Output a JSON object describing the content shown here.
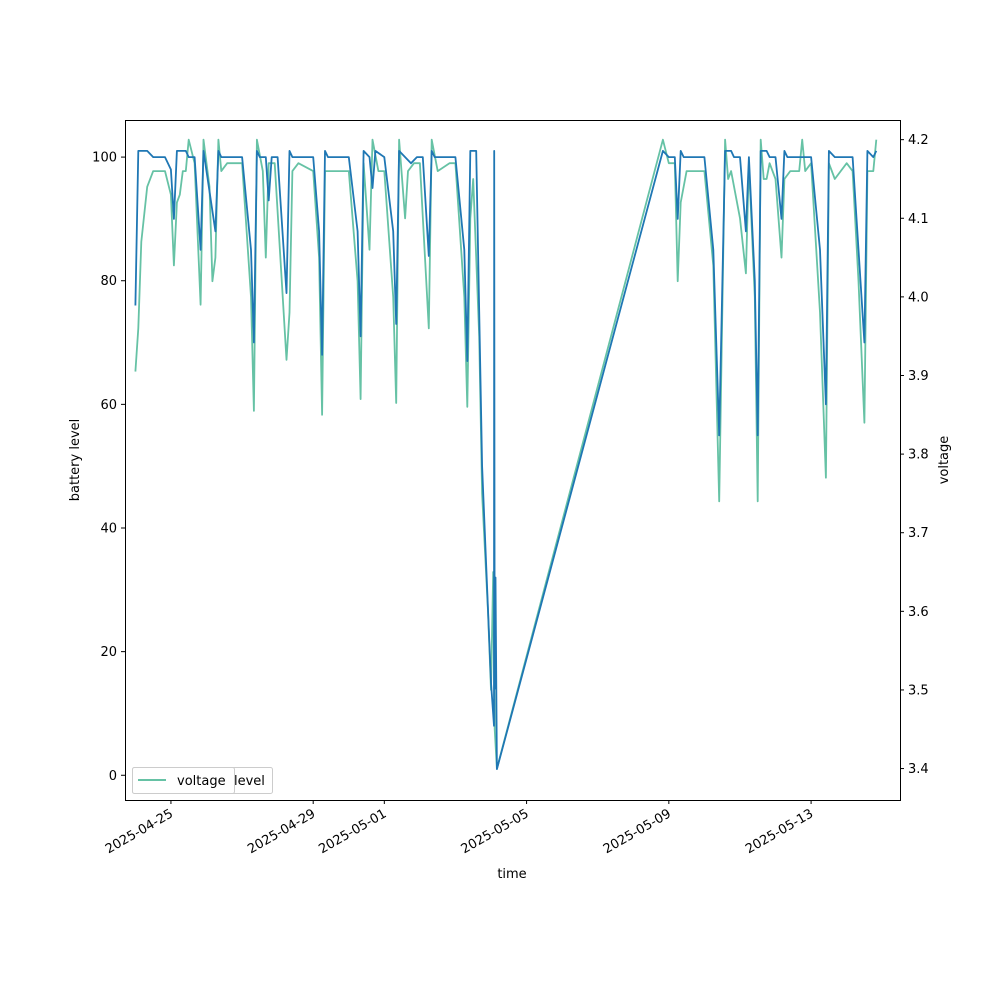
{
  "chart_data": {
    "type": "line",
    "xlabel": "time",
    "ylabel_left": "battery level",
    "ylabel_right": "voltage",
    "x_range": [
      "2025-04-23T17:00",
      "2025-05-15T12:00"
    ],
    "ylim_left": [
      -4,
      106
    ],
    "ylim_right": [
      3.36,
      4.225
    ],
    "x_ticks": [
      "2025-04-25",
      "2025-04-29",
      "2025-05-01",
      "2025-05-05",
      "2025-05-09",
      "2025-05-13"
    ],
    "y_ticks_left": [
      "0",
      "20",
      "40",
      "60",
      "80",
      "100"
    ],
    "y_ticks_right": [
      "3.4",
      "3.5",
      "3.6",
      "3.7",
      "3.8",
      "3.9",
      "4.0",
      "4.1",
      "4.2"
    ],
    "legend": {
      "placement": "lower-left",
      "entries": [
        "voltage",
        "level"
      ]
    },
    "colors": {
      "level": "#1f77b4",
      "voltage": "#66c2a5"
    },
    "grid": false,
    "series": [
      {
        "name": "level",
        "axis": "left",
        "color": "#1f77b4",
        "points": [
          [
            "2025-04-24T00:00",
            76
          ],
          [
            "2025-04-24T02:00",
            101
          ],
          [
            "2025-04-24T08:00",
            101
          ],
          [
            "2025-04-24T12:00",
            100
          ],
          [
            "2025-04-24T20:00",
            100
          ],
          [
            "2025-04-25T00:00",
            98
          ],
          [
            "2025-04-25T02:00",
            90
          ],
          [
            "2025-04-25T04:00",
            101
          ],
          [
            "2025-04-25T10:00",
            101
          ],
          [
            "2025-04-25T12:00",
            100
          ],
          [
            "2025-04-25T16:00",
            100
          ],
          [
            "2025-04-25T20:00",
            85
          ],
          [
            "2025-04-25T22:00",
            101
          ],
          [
            "2025-04-26T06:00",
            88
          ],
          [
            "2025-04-26T08:00",
            101
          ],
          [
            "2025-04-26T10:00",
            100
          ],
          [
            "2025-04-27T00:00",
            100
          ],
          [
            "2025-04-27T06:00",
            85
          ],
          [
            "2025-04-27T08:00",
            70
          ],
          [
            "2025-04-27T10:00",
            101
          ],
          [
            "2025-04-27T12:00",
            100
          ],
          [
            "2025-04-27T16:00",
            100
          ],
          [
            "2025-04-27T18:00",
            93
          ],
          [
            "2025-04-27T20:00",
            100
          ],
          [
            "2025-04-28T00:00",
            100
          ],
          [
            "2025-04-28T06:00",
            78
          ],
          [
            "2025-04-28T08:00",
            101
          ],
          [
            "2025-04-28T10:00",
            100
          ],
          [
            "2025-04-29T00:00",
            100
          ],
          [
            "2025-04-29T04:00",
            88
          ],
          [
            "2025-04-29T06:00",
            68
          ],
          [
            "2025-04-29T08:00",
            101
          ],
          [
            "2025-04-29T10:00",
            100
          ],
          [
            "2025-04-30T00:00",
            100
          ],
          [
            "2025-04-30T06:00",
            88
          ],
          [
            "2025-04-30T08:00",
            71
          ],
          [
            "2025-04-30T10:00",
            101
          ],
          [
            "2025-04-30T14:00",
            100
          ],
          [
            "2025-04-30T16:00",
            95
          ],
          [
            "2025-04-30T18:00",
            101
          ],
          [
            "2025-05-01T00:00",
            100
          ],
          [
            "2025-05-01T06:00",
            88
          ],
          [
            "2025-05-01T08:00",
            73
          ],
          [
            "2025-05-01T10:00",
            101
          ],
          [
            "2025-05-01T14:00",
            100
          ],
          [
            "2025-05-01T18:00",
            99
          ],
          [
            "2025-05-01T22:00",
            100
          ],
          [
            "2025-05-02T02:00",
            100
          ],
          [
            "2025-05-02T06:00",
            84
          ],
          [
            "2025-05-02T08:00",
            101
          ],
          [
            "2025-05-02T10:00",
            100
          ],
          [
            "2025-05-03T00:00",
            100
          ],
          [
            "2025-05-03T06:00",
            85
          ],
          [
            "2025-05-03T08:00",
            67
          ],
          [
            "2025-05-03T10:00",
            101
          ],
          [
            "2025-05-03T14:00",
            101
          ],
          [
            "2025-05-03T16:00",
            75
          ],
          [
            "2025-05-03T18:00",
            50
          ],
          [
            "2025-05-04T00:00",
            15
          ],
          [
            "2025-05-04T02:00",
            8
          ],
          [
            "2025-05-04T02:10",
            101
          ],
          [
            "2025-05-04T02:20",
            40
          ],
          [
            "2025-05-04T02:30",
            14
          ],
          [
            "2025-05-04T03:00",
            32
          ],
          [
            "2025-05-04T04:00",
            1
          ],
          [
            "2025-05-08T20:00",
            101
          ],
          [
            "2025-05-09T00:00",
            100
          ],
          [
            "2025-05-09T04:00",
            100
          ],
          [
            "2025-05-09T06:00",
            90
          ],
          [
            "2025-05-09T08:00",
            101
          ],
          [
            "2025-05-09T10:00",
            100
          ],
          [
            "2025-05-10T00:00",
            100
          ],
          [
            "2025-05-10T06:00",
            85
          ],
          [
            "2025-05-10T10:00",
            55
          ],
          [
            "2025-05-10T14:00",
            101
          ],
          [
            "2025-05-10T18:00",
            101
          ],
          [
            "2025-05-10T20:00",
            100
          ],
          [
            "2025-05-11T00:00",
            100
          ],
          [
            "2025-05-11T04:00",
            88
          ],
          [
            "2025-05-11T06:00",
            100
          ],
          [
            "2025-05-11T10:00",
            80
          ],
          [
            "2025-05-11T12:00",
            55
          ],
          [
            "2025-05-11T14:00",
            101
          ],
          [
            "2025-05-11T18:00",
            101
          ],
          [
            "2025-05-11T20:00",
            100
          ],
          [
            "2025-05-12T00:00",
            100
          ],
          [
            "2025-05-12T04:00",
            90
          ],
          [
            "2025-05-12T06:00",
            101
          ],
          [
            "2025-05-12T08:00",
            100
          ],
          [
            "2025-05-13T00:00",
            100
          ],
          [
            "2025-05-13T06:00",
            85
          ],
          [
            "2025-05-13T10:00",
            60
          ],
          [
            "2025-05-13T12:00",
            101
          ],
          [
            "2025-05-13T16:00",
            100
          ],
          [
            "2025-05-14T04:00",
            100
          ],
          [
            "2025-05-14T08:00",
            85
          ],
          [
            "2025-05-14T12:00",
            70
          ],
          [
            "2025-05-14T14:00",
            101
          ],
          [
            "2025-05-14T18:00",
            100
          ],
          [
            "2025-05-14T20:00",
            101
          ]
        ]
      },
      {
        "name": "voltage",
        "axis": "right",
        "color": "#66c2a5",
        "points": [
          [
            "2025-04-24T00:00",
            3.905
          ],
          [
            "2025-04-24T02:00",
            3.96
          ],
          [
            "2025-04-24T04:00",
            4.07
          ],
          [
            "2025-04-24T08:00",
            4.14
          ],
          [
            "2025-04-24T12:00",
            4.16
          ],
          [
            "2025-04-24T20:00",
            4.16
          ],
          [
            "2025-04-25T00:00",
            4.13
          ],
          [
            "2025-04-25T02:00",
            4.04
          ],
          [
            "2025-04-25T04:00",
            4.12
          ],
          [
            "2025-04-25T06:00",
            4.13
          ],
          [
            "2025-04-25T08:00",
            4.16
          ],
          [
            "2025-04-25T10:00",
            4.16
          ],
          [
            "2025-04-25T12:00",
            4.2
          ],
          [
            "2025-04-25T16:00",
            4.17
          ],
          [
            "2025-04-25T20:00",
            3.99
          ],
          [
            "2025-04-25T22:00",
            4.2
          ],
          [
            "2025-04-26T02:00",
            4.14
          ],
          [
            "2025-04-26T04:00",
            4.02
          ],
          [
            "2025-04-26T06:00",
            4.05
          ],
          [
            "2025-04-26T08:00",
            4.2
          ],
          [
            "2025-04-26T10:00",
            4.16
          ],
          [
            "2025-04-26T14:00",
            4.17
          ],
          [
            "2025-04-27T00:00",
            4.17
          ],
          [
            "2025-04-27T06:00",
            4.0
          ],
          [
            "2025-04-27T08:00",
            3.855
          ],
          [
            "2025-04-27T10:00",
            4.2
          ],
          [
            "2025-04-27T14:00",
            4.16
          ],
          [
            "2025-04-27T16:00",
            4.05
          ],
          [
            "2025-04-27T18:00",
            4.17
          ],
          [
            "2025-04-27T22:00",
            4.17
          ],
          [
            "2025-04-28T06:00",
            3.92
          ],
          [
            "2025-04-28T08:00",
            3.98
          ],
          [
            "2025-04-28T10:00",
            4.16
          ],
          [
            "2025-04-28T14:00",
            4.17
          ],
          [
            "2025-04-29T00:00",
            4.16
          ],
          [
            "2025-04-29T04:00",
            4.05
          ],
          [
            "2025-04-29T06:00",
            3.85
          ],
          [
            "2025-04-29T08:00",
            4.16
          ],
          [
            "2025-04-29T12:00",
            4.16
          ],
          [
            "2025-04-30T00:00",
            4.16
          ],
          [
            "2025-04-30T06:00",
            4.02
          ],
          [
            "2025-04-30T08:00",
            3.87
          ],
          [
            "2025-04-30T10:00",
            4.17
          ],
          [
            "2025-04-30T14:00",
            4.06
          ],
          [
            "2025-04-30T16:00",
            4.2
          ],
          [
            "2025-04-30T20:00",
            4.16
          ],
          [
            "2025-05-01T00:00",
            4.16
          ],
          [
            "2025-05-01T06:00",
            4.0
          ],
          [
            "2025-05-01T08:00",
            3.865
          ],
          [
            "2025-05-01T10:00",
            4.2
          ],
          [
            "2025-05-01T14:00",
            4.1
          ],
          [
            "2025-05-01T16:00",
            4.16
          ],
          [
            "2025-05-01T20:00",
            4.17
          ],
          [
            "2025-05-02T00:00",
            4.17
          ],
          [
            "2025-05-02T06:00",
            3.96
          ],
          [
            "2025-05-02T08:00",
            4.2
          ],
          [
            "2025-05-02T12:00",
            4.16
          ],
          [
            "2025-05-02T20:00",
            4.17
          ],
          [
            "2025-05-03T00:00",
            4.17
          ],
          [
            "2025-05-03T06:00",
            4.0
          ],
          [
            "2025-05-03T08:00",
            3.86
          ],
          [
            "2025-05-03T10:00",
            4.1
          ],
          [
            "2025-05-03T12:00",
            4.15
          ],
          [
            "2025-05-03T16:00",
            3.95
          ],
          [
            "2025-05-03T18:00",
            3.75
          ],
          [
            "2025-05-03T22:00",
            3.6
          ],
          [
            "2025-05-04T00:00",
            3.5
          ],
          [
            "2025-05-04T01:30",
            3.65
          ],
          [
            "2025-05-04T02:30",
            3.45
          ],
          [
            "2025-05-04T04:00",
            3.4
          ],
          [
            "2025-05-08T20:00",
            4.2
          ],
          [
            "2025-05-09T00:00",
            4.17
          ],
          [
            "2025-05-09T04:00",
            4.17
          ],
          [
            "2025-05-09T06:00",
            4.02
          ],
          [
            "2025-05-09T08:00",
            4.12
          ],
          [
            "2025-05-09T12:00",
            4.16
          ],
          [
            "2025-05-10T00:00",
            4.16
          ],
          [
            "2025-05-10T06:00",
            4.04
          ],
          [
            "2025-05-10T10:00",
            3.74
          ],
          [
            "2025-05-10T14:00",
            4.2
          ],
          [
            "2025-05-10T16:00",
            4.15
          ],
          [
            "2025-05-10T18:00",
            4.16
          ],
          [
            "2025-05-11T00:00",
            4.1
          ],
          [
            "2025-05-11T04:00",
            4.03
          ],
          [
            "2025-05-11T06:00",
            4.17
          ],
          [
            "2025-05-11T10:00",
            4.0
          ],
          [
            "2025-05-11T12:00",
            3.74
          ],
          [
            "2025-05-11T14:00",
            4.2
          ],
          [
            "2025-05-11T16:00",
            4.15
          ],
          [
            "2025-05-11T18:00",
            4.15
          ],
          [
            "2025-05-11T20:00",
            4.17
          ],
          [
            "2025-05-12T00:00",
            4.15
          ],
          [
            "2025-05-12T04:00",
            4.05
          ],
          [
            "2025-05-12T06:00",
            4.15
          ],
          [
            "2025-05-12T10:00",
            4.16
          ],
          [
            "2025-05-12T16:00",
            4.16
          ],
          [
            "2025-05-12T18:00",
            4.2
          ],
          [
            "2025-05-12T20:00",
            4.16
          ],
          [
            "2025-05-13T00:00",
            4.17
          ],
          [
            "2025-05-13T06:00",
            3.98
          ],
          [
            "2025-05-13T10:00",
            3.77
          ],
          [
            "2025-05-13T12:00",
            4.17
          ],
          [
            "2025-05-13T16:00",
            4.15
          ],
          [
            "2025-05-14T00:00",
            4.17
          ],
          [
            "2025-05-14T04:00",
            4.16
          ],
          [
            "2025-05-14T08:00",
            4.02
          ],
          [
            "2025-05-14T12:00",
            3.84
          ],
          [
            "2025-05-14T14:00",
            4.16
          ],
          [
            "2025-05-14T18:00",
            4.16
          ],
          [
            "2025-05-14T20:00",
            4.2
          ]
        ]
      }
    ]
  }
}
